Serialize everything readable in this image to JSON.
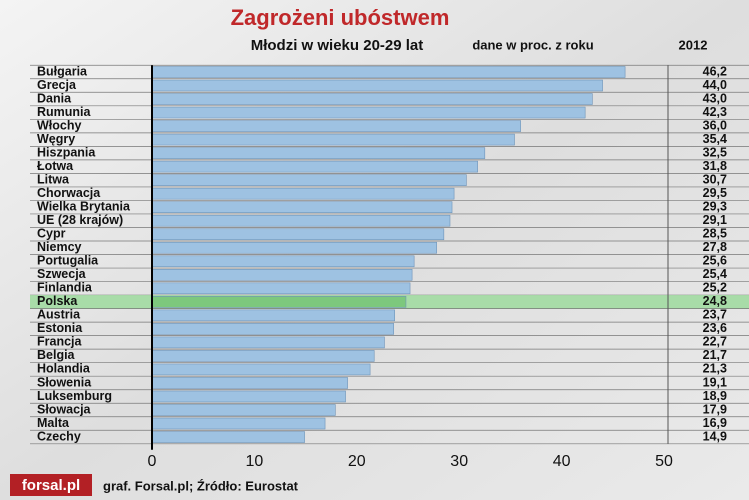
{
  "chart_data": {
    "type": "hbar",
    "title": "Zagrożeni ubóstwem",
    "subtitle": "Młodzi w wieku 20-29 lat",
    "unit_note": "dane w proc. z roku",
    "year": "2012",
    "source": "graf. Forsal.pl; Źródło: Eurostat",
    "logo": "forsal.pl",
    "categories": [
      "Bułgaria",
      "Grecja",
      "Dania",
      "Rumunia",
      "Włochy",
      "Węgry",
      "Hiszpania",
      "Łotwa",
      "Litwa",
      "Chorwacja",
      "Wielka Brytania",
      "UE (28 krajów)",
      "Cypr",
      "Niemcy",
      "Portugalia",
      "Szwecja",
      "Finlandia",
      "Polska",
      "Austria",
      "Estonia",
      "Francja",
      "Belgia",
      "Holandia",
      "Słowenia",
      "Luksemburg",
      "Słowacja",
      "Malta",
      "Czechy"
    ],
    "values": [
      46.2,
      44.0,
      43.0,
      42.3,
      36.0,
      35.4,
      32.5,
      31.8,
      30.7,
      29.5,
      29.3,
      29.1,
      28.5,
      27.8,
      25.6,
      25.4,
      25.2,
      24.8,
      23.7,
      23.6,
      22.7,
      21.7,
      21.3,
      19.1,
      18.9,
      17.9,
      16.9,
      14.9
    ],
    "value_labels": [
      "46,2",
      "44,0",
      "43,0",
      "42,3",
      "36,0",
      "35,4",
      "32,5",
      "31,8",
      "30,7",
      "29,5",
      "29,3",
      "29,1",
      "28,5",
      "27,8",
      "25,6",
      "25,4",
      "25,2",
      "24,8",
      "23,7",
      "23,6",
      "22,7",
      "21,7",
      "21,3",
      "19,1",
      "18,9",
      "17,9",
      "16,9",
      "14,9"
    ],
    "color": "#9ec2e2",
    "highlight_color": "#7dc87d",
    "highlight_row_color": "#a8dca8",
    "highlight": [
      false,
      false,
      false,
      false,
      false,
      false,
      false,
      false,
      false,
      false,
      false,
      false,
      false,
      false,
      false,
      false,
      false,
      true,
      false,
      false,
      false,
      false,
      false,
      false,
      false,
      false,
      false,
      false
    ],
    "xlim": [
      0,
      50
    ],
    "xticks": [
      0,
      10,
      20,
      30,
      40,
      50
    ]
  }
}
